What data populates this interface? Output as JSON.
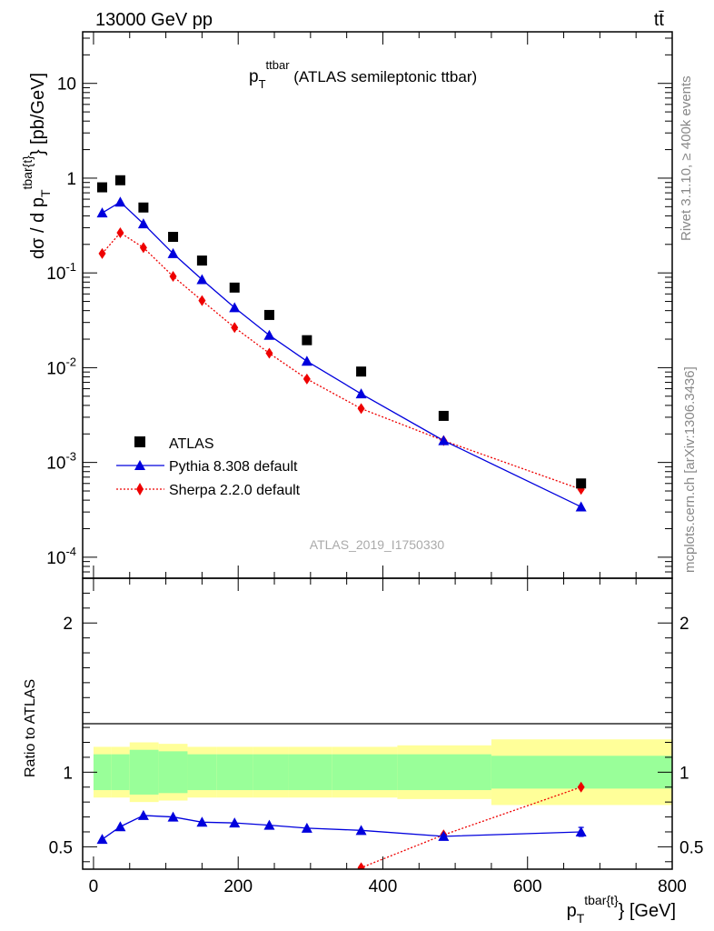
{
  "header": {
    "energy_label": "13000 GeV pp",
    "process_label": "tt̄"
  },
  "side_labels": {
    "rivet": "Rivet 3.1.10, ≥ 400k events",
    "mcplots": "mcplots.cern.ch [arXiv:1306.3436]"
  },
  "plot_title": {
    "main": "p",
    "sub": "T",
    "sup": "ttbar",
    "rest": " (ATLAS semileptonic ttbar)"
  },
  "watermark": "ATLAS_2019_I1750330",
  "axes": {
    "main_ylabel": {
      "pre": "dσ / d p",
      "sub": "T",
      "sup": "tbar{t}",
      "post": "} [pb/GeV]"
    },
    "ratio_ylabel": "Ratio to ATLAS",
    "xlabel": {
      "pre": "p",
      "sub": "T",
      "sup": "tbar{t}",
      "post": "} [GeV]"
    }
  },
  "legend": {
    "data": "ATLAS",
    "pythia": "Pythia 8.308 default",
    "sherpa": "Sherpa 2.2.0 default"
  },
  "colors": {
    "data": "#000000",
    "pythia": "#0000dd",
    "sherpa": "#ee0000",
    "band_inner": "#99ff99",
    "band_outer": "#ffff99"
  },
  "chart_data": [
    {
      "type": "scatter",
      "panel": "main",
      "ylog": true,
      "xlim": [
        -15,
        800
      ],
      "ylim": [
        6e-05,
        35
      ],
      "x_ticks": [
        0,
        200,
        400,
        600,
        800
      ],
      "y_tick_labels": [
        "10^-4",
        "10^-3",
        "10^-2",
        "10^-1",
        "1",
        "10"
      ],
      "series": [
        {
          "name": "ATLAS",
          "x": [
            12,
            37,
            69,
            110,
            150,
            195,
            243,
            295,
            370,
            484,
            674
          ],
          "y": [
            0.8,
            0.95,
            0.49,
            0.24,
            0.135,
            0.07,
            0.036,
            0.0195,
            0.0091,
            0.0031,
            0.0006
          ]
        },
        {
          "name": "Pythia 8.308 default",
          "x": [
            12,
            37,
            69,
            110,
            150,
            195,
            243,
            295,
            370,
            484,
            674
          ],
          "y": [
            0.43,
            0.56,
            0.33,
            0.16,
            0.085,
            0.043,
            0.022,
            0.0117,
            0.0053,
            0.0017,
            0.00034
          ]
        },
        {
          "name": "Sherpa 2.2.0 default",
          "x": [
            12,
            37,
            69,
            110,
            150,
            195,
            243,
            295,
            370,
            484,
            674
          ],
          "y": [
            0.16,
            0.265,
            0.185,
            0.092,
            0.051,
            0.0265,
            0.0142,
            0.0076,
            0.0037,
            0.0017,
            0.00052
          ]
        }
      ]
    },
    {
      "type": "line",
      "panel": "ratio",
      "xlim": [
        -15,
        800
      ],
      "ylim": [
        0.35,
        2.3
      ],
      "y_ticks": [
        0.5,
        1,
        2
      ],
      "bins": [
        0,
        25,
        50,
        90,
        130,
        170,
        220,
        270,
        330,
        420,
        550,
        800
      ],
      "band_inner_half": [
        0.12,
        0.12,
        0.15,
        0.14,
        0.12,
        0.12,
        0.12,
        0.12,
        0.12,
        0.12,
        0.11
      ],
      "band_outer_half": [
        0.17,
        0.17,
        0.2,
        0.19,
        0.17,
        0.17,
        0.17,
        0.17,
        0.17,
        0.18,
        0.22
      ],
      "series": [
        {
          "name": "Pythia 8.308 default",
          "x": [
            12,
            37,
            69,
            110,
            150,
            195,
            243,
            295,
            370,
            484,
            674
          ],
          "y": [
            0.55,
            0.635,
            0.71,
            0.7,
            0.665,
            0.66,
            0.645,
            0.625,
            0.61,
            0.57,
            0.6
          ],
          "err": [
            0,
            0,
            0,
            0,
            0,
            0,
            0,
            0,
            0,
            0.01,
            0.03
          ]
        },
        {
          "name": "Sherpa 2.2.0 default",
          "x": [
            370,
            484,
            674
          ],
          "y": [
            0.36,
            0.58,
            0.9
          ],
          "err": [
            0,
            0.02,
            0.025
          ]
        }
      ]
    }
  ]
}
